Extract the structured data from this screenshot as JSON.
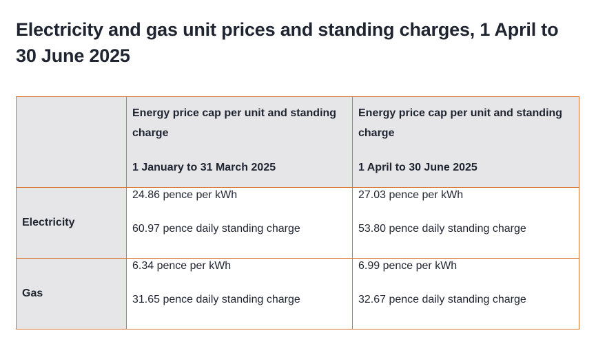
{
  "page": {
    "title": "Electricity and gas unit prices and standing charges, 1 April to 30 June 2025"
  },
  "table": {
    "columns": [
      {
        "heading": "Energy price cap per unit and standing charge",
        "period": "1 January to 31 March 2025"
      },
      {
        "heading": "Energy price cap per unit and standing charge",
        "period": "1 April to 30 June 2025"
      }
    ],
    "rows": [
      {
        "label": "Electricity",
        "cells": [
          {
            "unit_rate": "24.86 pence per kWh",
            "standing_charge": "60.97 pence daily standing charge"
          },
          {
            "unit_rate": "27.03 pence per kWh",
            "standing_charge": "53.80 pence daily standing charge"
          }
        ]
      },
      {
        "label": "Gas",
        "cells": [
          {
            "unit_rate": "6.34 pence per kWh",
            "standing_charge": "31.65 pence daily standing charge"
          },
          {
            "unit_rate": "6.99 pence per kWh",
            "standing_charge": "32.67 pence daily standing charge"
          }
        ]
      }
    ]
  },
  "colors": {
    "border": "#d9742e",
    "header_background": "#e6e6e8",
    "text": "#1f2431"
  }
}
